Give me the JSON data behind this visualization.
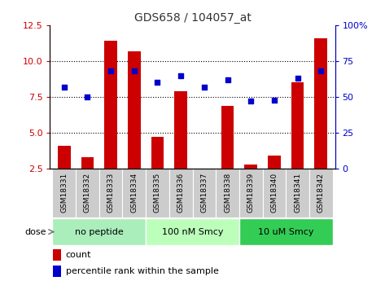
{
  "title": "GDS658 / 104057_at",
  "samples": [
    "GSM18331",
    "GSM18332",
    "GSM18333",
    "GSM18334",
    "GSM18335",
    "GSM18336",
    "GSM18337",
    "GSM18338",
    "GSM18339",
    "GSM18340",
    "GSM18341",
    "GSM18342"
  ],
  "counts": [
    4.1,
    3.3,
    11.4,
    10.7,
    4.7,
    7.9,
    2.5,
    6.9,
    2.8,
    3.4,
    8.5,
    11.6
  ],
  "percentile_ranks": [
    57,
    50,
    68,
    68,
    60,
    65,
    57,
    62,
    47,
    48,
    63,
    68
  ],
  "bar_color": "#cc0000",
  "dot_color": "#0000cc",
  "ylim_left": [
    2.5,
    12.5
  ],
  "ylim_right": [
    0,
    100
  ],
  "yticks_left": [
    2.5,
    5.0,
    7.5,
    10.0,
    12.5
  ],
  "yticks_right": [
    0,
    25,
    50,
    75,
    100
  ],
  "ytick_labels_right": [
    "0",
    "25",
    "50",
    "75",
    "100%"
  ],
  "dose_groups": [
    {
      "label": "no peptide",
      "start": 0,
      "end": 4,
      "color": "#aaeebb"
    },
    {
      "label": "100 nM Smcy",
      "start": 4,
      "end": 8,
      "color": "#bbffbb"
    },
    {
      "label": "10 uM Smcy",
      "start": 8,
      "end": 12,
      "color": "#33cc55"
    }
  ],
  "dose_label": "dose",
  "legend_count_label": "count",
  "legend_pct_label": "percentile rank within the sample",
  "bg_plot": "#ffffff",
  "bg_xticklabel": "#cccccc",
  "title_color": "#333333",
  "left_ycolor": "#cc0000",
  "right_ycolor": "#0000cc",
  "grid_dotted_at": [
    5.0,
    7.5,
    10.0
  ]
}
